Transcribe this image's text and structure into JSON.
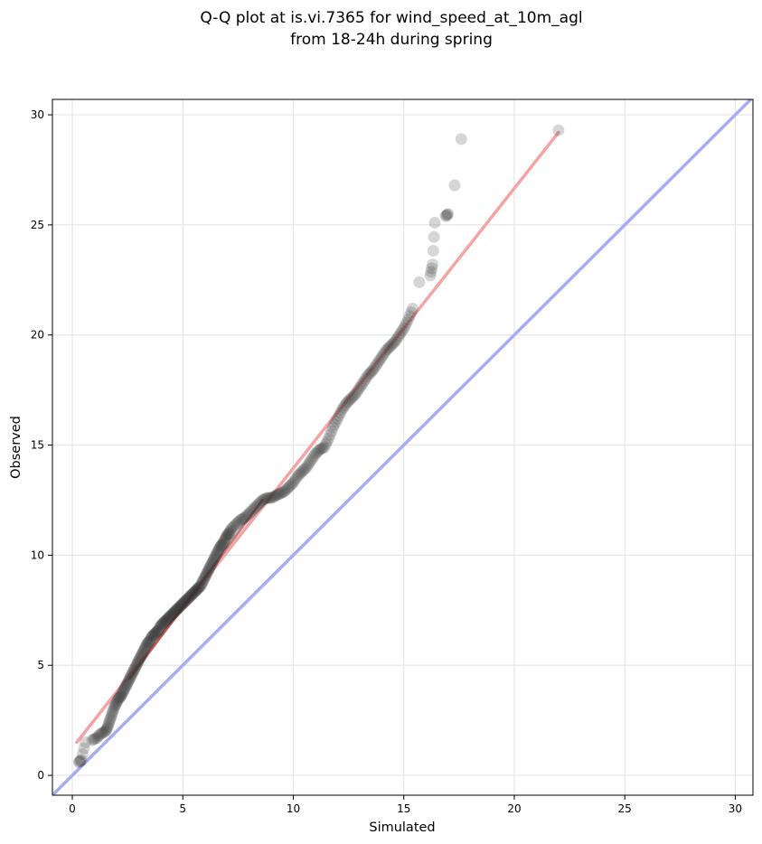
{
  "chart_data": {
    "type": "scatter",
    "title_line1": "Q-Q plot at is.vi.7365 for wind_speed_at_10m_agl",
    "title_line2": "from 18-24h during spring",
    "xlabel": "Simulated",
    "ylabel": "Observed",
    "xlim": [
      -0.9,
      30.8
    ],
    "ylim": [
      -0.9,
      30.7
    ],
    "xticks": [
      "0",
      "5",
      "10",
      "15",
      "20",
      "25",
      "30"
    ],
    "yticks": [
      "0",
      "5",
      "10",
      "15",
      "20",
      "25",
      "30"
    ],
    "grid": true,
    "colors": {
      "points": "#333333",
      "fit_line": "#f4a4a4",
      "identity_line": "#a9abf5",
      "dense_overlay": "#8b1a1a"
    },
    "fit_line": {
      "x": [
        0.2,
        22.0
      ],
      "y": [
        1.5,
        29.2
      ]
    },
    "identity_line": {
      "x": [
        -0.9,
        30.8
      ],
      "y": [
        -0.9,
        30.8
      ]
    },
    "points": {
      "x": [
        0.3,
        0.4,
        0.6,
        0.9,
        1.1,
        1.3,
        1.5,
        1.6,
        1.7,
        1.8,
        1.9,
        2.0,
        2.1,
        2.2,
        2.3,
        2.4,
        2.5,
        2.6,
        2.7,
        2.8,
        2.9,
        3.0,
        3.1,
        3.2,
        3.3,
        3.4,
        3.5,
        3.6,
        3.7,
        3.8,
        3.9,
        4.0,
        4.1,
        4.2,
        4.3,
        4.4,
        4.5,
        4.6,
        4.7,
        4.8,
        4.9,
        5.0,
        5.1,
        5.2,
        5.3,
        5.4,
        5.5,
        5.6,
        5.7,
        5.8,
        5.9,
        6.0,
        6.1,
        6.2,
        6.3,
        6.4,
        6.5,
        6.6,
        6.7,
        6.8,
        6.9,
        7.0,
        7.1,
        7.2,
        7.4,
        7.6,
        7.8,
        8.0,
        8.2,
        8.4,
        8.6,
        8.8,
        9.0,
        9.2,
        9.4,
        9.6,
        9.8,
        10.0,
        10.2,
        10.4,
        10.6,
        10.8,
        11.0,
        11.2,
        11.4,
        11.6,
        11.8,
        12.0,
        12.2,
        12.4,
        12.6,
        12.8,
        13.0,
        13.2,
        13.4,
        13.6,
        13.8,
        14.0,
        14.2,
        14.4,
        14.6,
        14.8,
        15.0,
        15.2,
        15.4,
        15.7,
        16.2,
        16.3,
        16.4,
        16.9,
        17.0,
        17.3,
        17.6,
        22.0
      ],
      "y": [
        0.6,
        0.7,
        1.5,
        1.6,
        1.7,
        1.9,
        2.0,
        2.2,
        2.5,
        2.8,
        3.1,
        3.3,
        3.5,
        3.6,
        3.8,
        4.0,
        4.2,
        4.4,
        4.6,
        4.8,
        5.0,
        5.2,
        5.4,
        5.6,
        5.8,
        6.0,
        6.1,
        6.3,
        6.4,
        6.5,
        6.6,
        6.8,
        6.9,
        7.0,
        7.1,
        7.2,
        7.3,
        7.4,
        7.5,
        7.6,
        7.7,
        7.8,
        7.9,
        8.0,
        8.1,
        8.2,
        8.3,
        8.4,
        8.5,
        8.6,
        8.8,
        9.0,
        9.2,
        9.4,
        9.6,
        9.8,
        10.0,
        10.2,
        10.4,
        10.5,
        10.7,
        10.9,
        11.0,
        11.2,
        11.4,
        11.6,
        11.7,
        11.9,
        12.1,
        12.3,
        12.5,
        12.6,
        12.6,
        12.7,
        12.8,
        12.9,
        13.1,
        13.3,
        13.6,
        13.8,
        14.0,
        14.3,
        14.6,
        14.8,
        14.9,
        15.3,
        15.8,
        16.2,
        16.6,
        16.9,
        17.1,
        17.3,
        17.6,
        17.9,
        18.2,
        18.4,
        18.7,
        19.0,
        19.3,
        19.5,
        19.7,
        20.0,
        20.3,
        20.7,
        21.2,
        22.4,
        22.7,
        23.2,
        25.1,
        25.4,
        25.5,
        26.8,
        28.9,
        29.3
      ]
    }
  }
}
